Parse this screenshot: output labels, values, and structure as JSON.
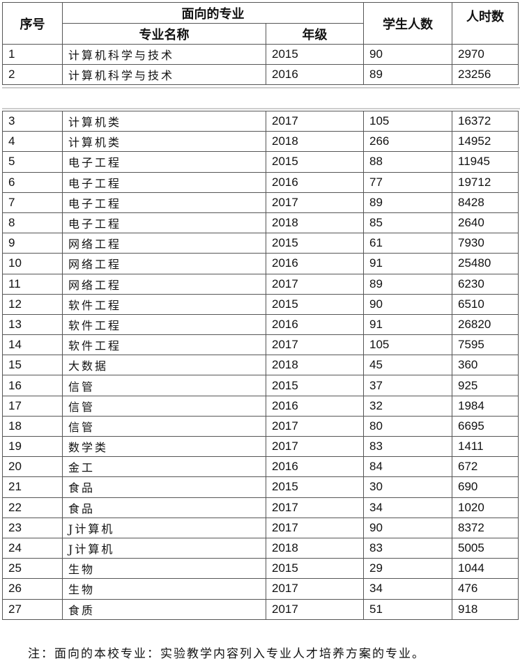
{
  "header": {
    "index": "序号",
    "major_group": "面向的专业",
    "major_name": "专业名称",
    "grade": "年级",
    "students": "学生人数",
    "hours": "人时数"
  },
  "rows": [
    [
      "1",
      "计算机科学与技术",
      "2015",
      "90",
      "2970"
    ],
    [
      "2",
      "计算机科学与技术",
      "2016",
      "89",
      "23256"
    ],
    [
      "3",
      "计算机类",
      "2017",
      "105",
      "16372"
    ],
    [
      "4",
      "计算机类",
      "2018",
      "266",
      "14952"
    ],
    [
      "5",
      "电子工程",
      "2015",
      "88",
      "11945"
    ],
    [
      "6",
      "电子工程",
      "2016",
      "77",
      "19712"
    ],
    [
      "7",
      "电子工程",
      "2017",
      "89",
      "8428"
    ],
    [
      "8",
      "电子工程",
      "2018",
      "85",
      "2640"
    ],
    [
      "9",
      "网络工程",
      "2015",
      "61",
      "7930"
    ],
    [
      "10",
      "网络工程",
      "2016",
      "91",
      "25480"
    ],
    [
      "11",
      "网络工程",
      "2017",
      "89",
      "6230"
    ],
    [
      "12",
      "软件工程",
      "2015",
      "90",
      "6510"
    ],
    [
      "13",
      "软件工程",
      "2016",
      "91",
      "26820"
    ],
    [
      "14",
      "软件工程",
      "2017",
      "105",
      "7595"
    ],
    [
      "15",
      "大数据",
      "2018",
      "45",
      "360"
    ],
    [
      "16",
      "信管",
      "2015",
      "37",
      "925"
    ],
    [
      "17",
      "信管",
      "2016",
      "32",
      "1984"
    ],
    [
      "18",
      "信管",
      "2017",
      "80",
      "6695"
    ],
    [
      "19",
      "数学类",
      "2017",
      "83",
      "1411"
    ],
    [
      "20",
      "金工",
      "2016",
      "84",
      "672"
    ],
    [
      "21",
      "食品",
      "2015",
      "30",
      "690"
    ],
    [
      "22",
      "食品",
      "2017",
      "34",
      "1020"
    ],
    [
      "23",
      "J计算机",
      "2017",
      "90",
      "8372"
    ],
    [
      "24",
      "J计算机",
      "2018",
      "83",
      "5005"
    ],
    [
      "25",
      "生物",
      "2015",
      "29",
      "1044"
    ],
    [
      "26",
      "生物",
      "2017",
      "34",
      "476"
    ],
    [
      "27",
      "食质",
      "2017",
      "51",
      "918"
    ]
  ],
  "note": "注：面向的本校专业：实验教学内容列入专业人才培养方案的专业。"
}
